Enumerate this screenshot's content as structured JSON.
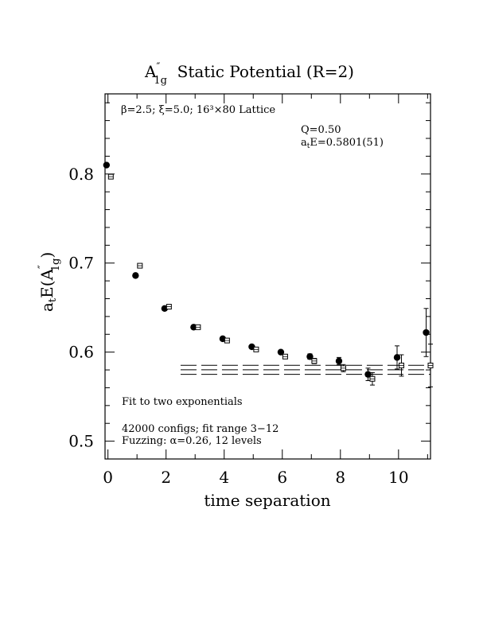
{
  "chart_data": {
    "type": "scatter",
    "title": "A″ Static Potential (R=2)",
    "title_parts": {
      "main": "A",
      "sup": "″",
      "sub": "1g",
      "rest": "  Static Potential (R=2)"
    },
    "xlabel": "time separation",
    "ylabel_parts": {
      "a": "a",
      "t": "t",
      "E": "E(A",
      "sup": "″",
      "sub": "1g",
      "close": ")"
    },
    "xlim": [
      -0.1,
      11.1
    ],
    "ylim": [
      0.48,
      0.89
    ],
    "x_ticks": [
      0,
      2,
      4,
      6,
      8,
      10
    ],
    "y_ticks": [
      0.5,
      0.6,
      0.7,
      0.8
    ],
    "x_tick_labels": [
      "0",
      "2",
      "4",
      "6",
      "8",
      "10"
    ],
    "y_tick_labels": [
      "0.5",
      "0.6",
      "0.7",
      "0.8"
    ],
    "grid": false,
    "annotations": {
      "lattice": "β=2.5; ξ=5.0; 16³×80 Lattice",
      "q": "Q=0.50",
      "energy_pre": "a",
      "energy_sub": "t",
      "energy_post": "E=0.5801(51)",
      "fit": "Fit to two exponentials",
      "configs": "42000 configs; fit range 3−12",
      "fuzzing": "Fuzzing: α=0.26, 12 levels"
    },
    "series": [
      {
        "marker": "filled-circle",
        "points": [
          {
            "x": 0,
            "y": 0.81,
            "err": 0.002
          },
          {
            "x": 1,
            "y": 0.686,
            "err": 0.002
          },
          {
            "x": 2,
            "y": 0.649,
            "err": 0.002
          },
          {
            "x": 3,
            "y": 0.628,
            "err": 0.002
          },
          {
            "x": 4,
            "y": 0.615,
            "err": 0.002
          },
          {
            "x": 5,
            "y": 0.606,
            "err": 0.002
          },
          {
            "x": 6,
            "y": 0.6,
            "err": 0.002
          },
          {
            "x": 7,
            "y": 0.595,
            "err": 0.003
          },
          {
            "x": 8,
            "y": 0.59,
            "err": 0.004
          },
          {
            "x": 9,
            "y": 0.575,
            "err": 0.007
          },
          {
            "x": 10,
            "y": 0.594,
            "err": 0.013
          },
          {
            "x": 11,
            "y": 0.622,
            "err": 0.027
          }
        ]
      },
      {
        "marker": "open-square",
        "points": [
          {
            "x": 0,
            "y": 0.797,
            "err": 0.002
          },
          {
            "x": 1,
            "y": 0.697,
            "err": 0.002
          },
          {
            "x": 2,
            "y": 0.651,
            "err": 0.002
          },
          {
            "x": 3,
            "y": 0.628,
            "err": 0.002
          },
          {
            "x": 4,
            "y": 0.613,
            "err": 0.002
          },
          {
            "x": 5,
            "y": 0.603,
            "err": 0.002
          },
          {
            "x": 6,
            "y": 0.595,
            "err": 0.002
          },
          {
            "x": 7,
            "y": 0.59,
            "err": 0.003
          },
          {
            "x": 8,
            "y": 0.582,
            "err": 0.004
          },
          {
            "x": 9,
            "y": 0.57,
            "err": 0.007
          },
          {
            "x": 10,
            "y": 0.585,
            "err": 0.012
          },
          {
            "x": 11,
            "y": 0.585,
            "err": 0.024
          }
        ]
      }
    ],
    "fit_band": {
      "x_range": [
        2.5,
        11.1
      ],
      "lines": [
        0.5852,
        0.5801,
        0.575
      ],
      "dashed": true
    }
  }
}
